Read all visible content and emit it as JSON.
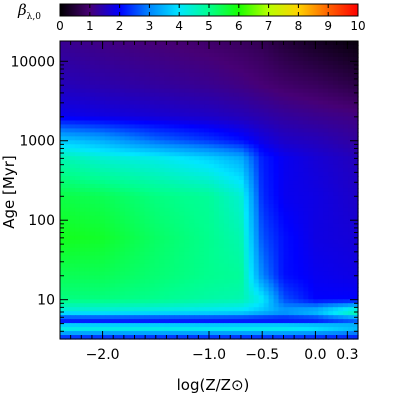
{
  "chart_data": {
    "type": "heatmap",
    "xlabel": "log(Z/Z⊙)",
    "ylabel": "Age [Myr]",
    "x_ticks": [
      -2.0,
      -1.0,
      -0.5,
      0.0,
      0.3
    ],
    "x_tick_labels": [
      "−2.0",
      "−1.0",
      "−0.5",
      "0.0",
      "0.3"
    ],
    "xlim": [
      -2.4,
      0.4
    ],
    "y_ticks": [
      10,
      100,
      1000,
      10000
    ],
    "y_tick_labels": [
      "10",
      "100",
      "1000",
      "10000"
    ],
    "ylim": [
      3.2,
      18000
    ],
    "y_scale": "log",
    "colorbar": {
      "title": "β",
      "title_subscript": "λ,0",
      "range": [
        0,
        10
      ],
      "tick_labels": [
        "0",
        "1",
        "2",
        "3",
        "4",
        "5",
        "6",
        "7",
        "8",
        "9",
        "10"
      ],
      "colormap": "rainbow"
    },
    "grid": false,
    "z_sample_grid": {
      "log_z": [
        -2.4,
        -2.0,
        -1.5,
        -1.0,
        -0.7,
        -0.5,
        -0.3,
        0.0,
        0.4
      ],
      "age_myr": [
        3.2,
        4.5,
        5.5,
        7,
        10,
        20,
        60,
        200,
        600,
        1000,
        2000,
        5000,
        18000
      ],
      "beta": [
        [
          2.0,
          2.0,
          2.0,
          2.0,
          2.0,
          2.0,
          2.0,
          2.0,
          2.0
        ],
        [
          4.6,
          4.6,
          4.6,
          4.5,
          4.5,
          4.5,
          4.5,
          4.3,
          3.8
        ],
        [
          1.9,
          1.9,
          1.9,
          1.9,
          1.9,
          1.9,
          1.9,
          2.0,
          2.6
        ],
        [
          4.2,
          4.2,
          4.1,
          4.0,
          3.9,
          3.6,
          3.3,
          3.7,
          5.0
        ],
        [
          5.1,
          5.1,
          5.0,
          4.8,
          4.7,
          4.1,
          2.6,
          2.0,
          2.0
        ],
        [
          5.4,
          5.4,
          5.2,
          5.0,
          4.9,
          3.0,
          2.1,
          1.9,
          1.8
        ],
        [
          5.8,
          5.7,
          5.3,
          5.0,
          4.7,
          2.6,
          2.1,
          1.8,
          1.7
        ],
        [
          5.5,
          5.4,
          5.1,
          4.9,
          4.4,
          2.3,
          1.9,
          1.8,
          1.6
        ],
        [
          4.7,
          4.4,
          4.2,
          3.8,
          3.4,
          2.2,
          1.9,
          1.7,
          1.5
        ],
        [
          3.7,
          3.4,
          2.8,
          2.4,
          2.1,
          1.8,
          1.6,
          1.5,
          1.3
        ],
        [
          1.9,
          1.8,
          1.7,
          1.6,
          1.5,
          1.4,
          1.3,
          1.2,
          1.1
        ],
        [
          1.5,
          1.4,
          1.3,
          1.2,
          1.1,
          1.0,
          0.9,
          0.8,
          0.6
        ],
        [
          1.2,
          1.1,
          1.0,
          0.9,
          0.8,
          0.7,
          0.5,
          0.3,
          0.1
        ]
      ]
    }
  }
}
